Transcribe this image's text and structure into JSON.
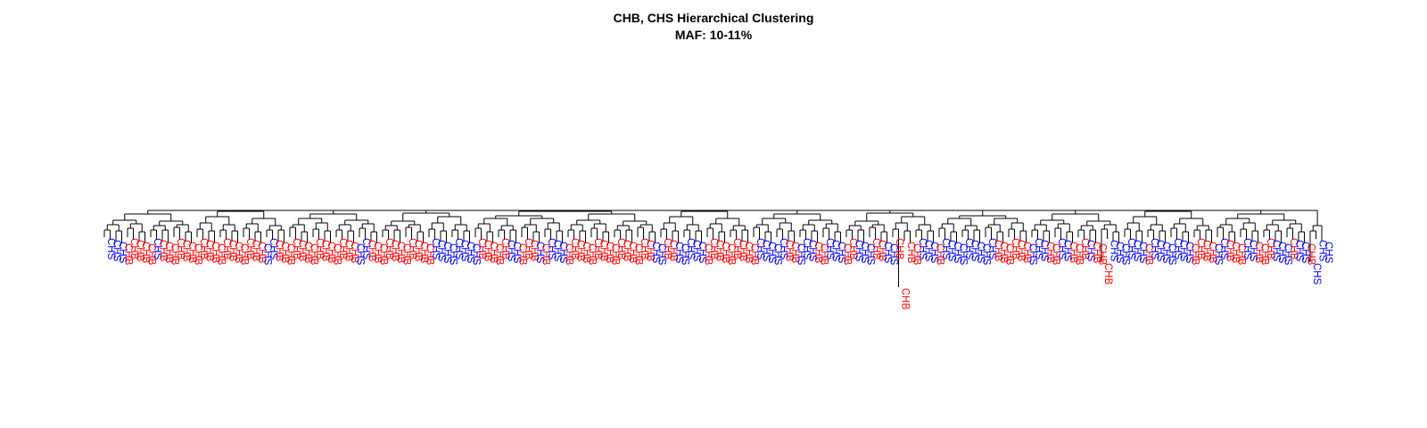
{
  "chart_data": {
    "type": "dendrogram",
    "title": "CHB, CHS Hierarchical Clustering",
    "subtitle": "MAF: 10-11%",
    "groups": [
      "CHB",
      "CHS"
    ],
    "colors": {
      "CHB": "#ff0000",
      "CHS": "#0000ff",
      "tree": "#000000"
    },
    "leaves": [
      "CHS",
      "CHS",
      "CHS",
      "CHB",
      "CHB",
      "CHB",
      "CHB",
      "CHB",
      "CHS",
      "CHB",
      "CHB",
      "CHB",
      "CHB",
      "CHB",
      "CHB",
      "CHB",
      "CHB",
      "CHB",
      "CHB",
      "CHB",
      "CHB",
      "CHB",
      "CHB",
      "CHB",
      "CHB",
      "CHB",
      "CHB",
      "CHS",
      "CHS",
      "CHB",
      "CHB",
      "CHB",
      "CHB",
      "CHB",
      "CHB",
      "CHB",
      "CHB",
      "CHB",
      "CHB",
      "CHB",
      "CHB",
      "CHB",
      "CHB",
      "CHS",
      "CHS",
      "CHB",
      "CHB",
      "CHB",
      "CHB",
      "CHB",
      "CHB",
      "CHB",
      "CHB",
      "CHB",
      "CHB",
      "CHB",
      "CHS",
      "CHS",
      "CHS",
      "CHS",
      "CHS",
      "CHS",
      "CHS",
      "CHS",
      "CHB",
      "CHB",
      "CHB",
      "CHB",
      "CHB",
      "CHS",
      "CHS",
      "CHB",
      "CHB",
      "CHB",
      "CHS",
      "CHB",
      "CHS",
      "CHS",
      "CHS",
      "CHB",
      "CHB",
      "CHB",
      "CHB",
      "CHB",
      "CHB",
      "CHB",
      "CHB",
      "CHB",
      "CHB",
      "CHB",
      "CHB",
      "CHB",
      "CHB",
      "CHB",
      "CHS",
      "CHS",
      "CHB",
      "CHB",
      "CHS",
      "CHS",
      "CHS",
      "CHS",
      "CHS",
      "CHB",
      "CHB",
      "CHB",
      "CHB",
      "CHB",
      "CHB",
      "CHB",
      "CHB",
      "CHB",
      "CHS",
      "CHS",
      "CHS",
      "CHS",
      "CHS",
      "CHB",
      "CHB",
      "CHS",
      "CHS",
      "CHS",
      "CHB",
      "CHB",
      "CHS",
      "CHS",
      "CHS",
      "CHB",
      "CHB",
      "CHS",
      "CHS",
      "CHS",
      "CHB",
      "CHB",
      "CHS",
      "CHS",
      "CHB",
      "CHB",
      "CHB",
      "CHB",
      "CHS",
      "CHS",
      "CHS",
      "CHB",
      "CHS",
      "CHS",
      "CHS",
      "CHS",
      "CHS",
      "CHS",
      "CHS",
      "CHS",
      "CHS",
      "CHB",
      "CHB",
      "CHB",
      "CHB",
      "CHB",
      "CHB",
      "CHS",
      "CHS",
      "CHS",
      "CHB",
      "CHB",
      "CHS",
      "CHS",
      "CHB",
      "CHB",
      "CHB",
      "CHS",
      "CHB",
      "CHB",
      "CHB",
      "CHS",
      "CHS",
      "CHS",
      "CHS",
      "CHS",
      "CHS",
      "CHB",
      "CHS",
      "CHS",
      "CHS",
      "CHS",
      "CHS",
      "CHS",
      "CHS",
      "CHB",
      "CHB",
      "CHB",
      "CHB",
      "CHS",
      "CHS",
      "CHB",
      "CHB",
      "CHB",
      "CHS",
      "CHS",
      "CHB",
      "CHB",
      "CHB",
      "CHS",
      "CHS",
      "CHS",
      "CHB",
      "CHS",
      "CHS",
      "CHB",
      "CHS",
      "CHS",
      "CHS"
    ],
    "xlabel": "",
    "ylabel": "",
    "axes": false,
    "grid": false,
    "legend": "none"
  }
}
